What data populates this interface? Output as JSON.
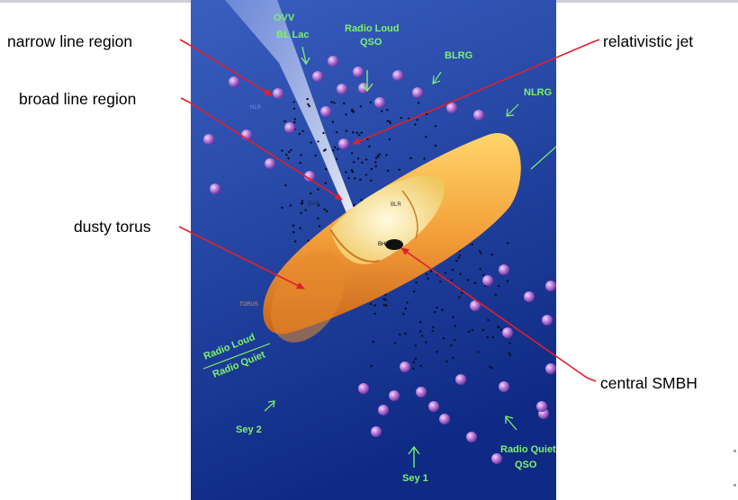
{
  "labels": {
    "narrow_line_region": "narrow line region",
    "broad_line_region": "broad line region",
    "dusty_torus": "dusty torus",
    "relativistic_jet": "relativistic jet",
    "central_smbh": "central SMBH"
  },
  "figure": {
    "ovv": "OVV",
    "bl_lac": "BL Lac",
    "radio_loud_qso_1": "Radio Loud",
    "radio_loud_qso_2": "QSO",
    "blrg": "BLRG",
    "nlrg": "NLRG",
    "radio_loud": "Radio Loud",
    "radio_quiet": "Radio Quiet",
    "sey2": "Sey 2",
    "sey1": "Sey 1",
    "radio_quiet_qso_1": "Radio Quiet",
    "radio_quiet_qso_2": "QSO",
    "nlr_tag": "NLR",
    "gas_tag": "GAS",
    "blr_tag": "BLR",
    "bh_tag": "BH",
    "torus_tag": "TORUS"
  },
  "colors": {
    "arrow": "#e0202c",
    "green_text": "#7cf26b",
    "background_top": "#2d4fb0",
    "background_bottom": "#0f2c86",
    "torus": "#f2a33a"
  }
}
